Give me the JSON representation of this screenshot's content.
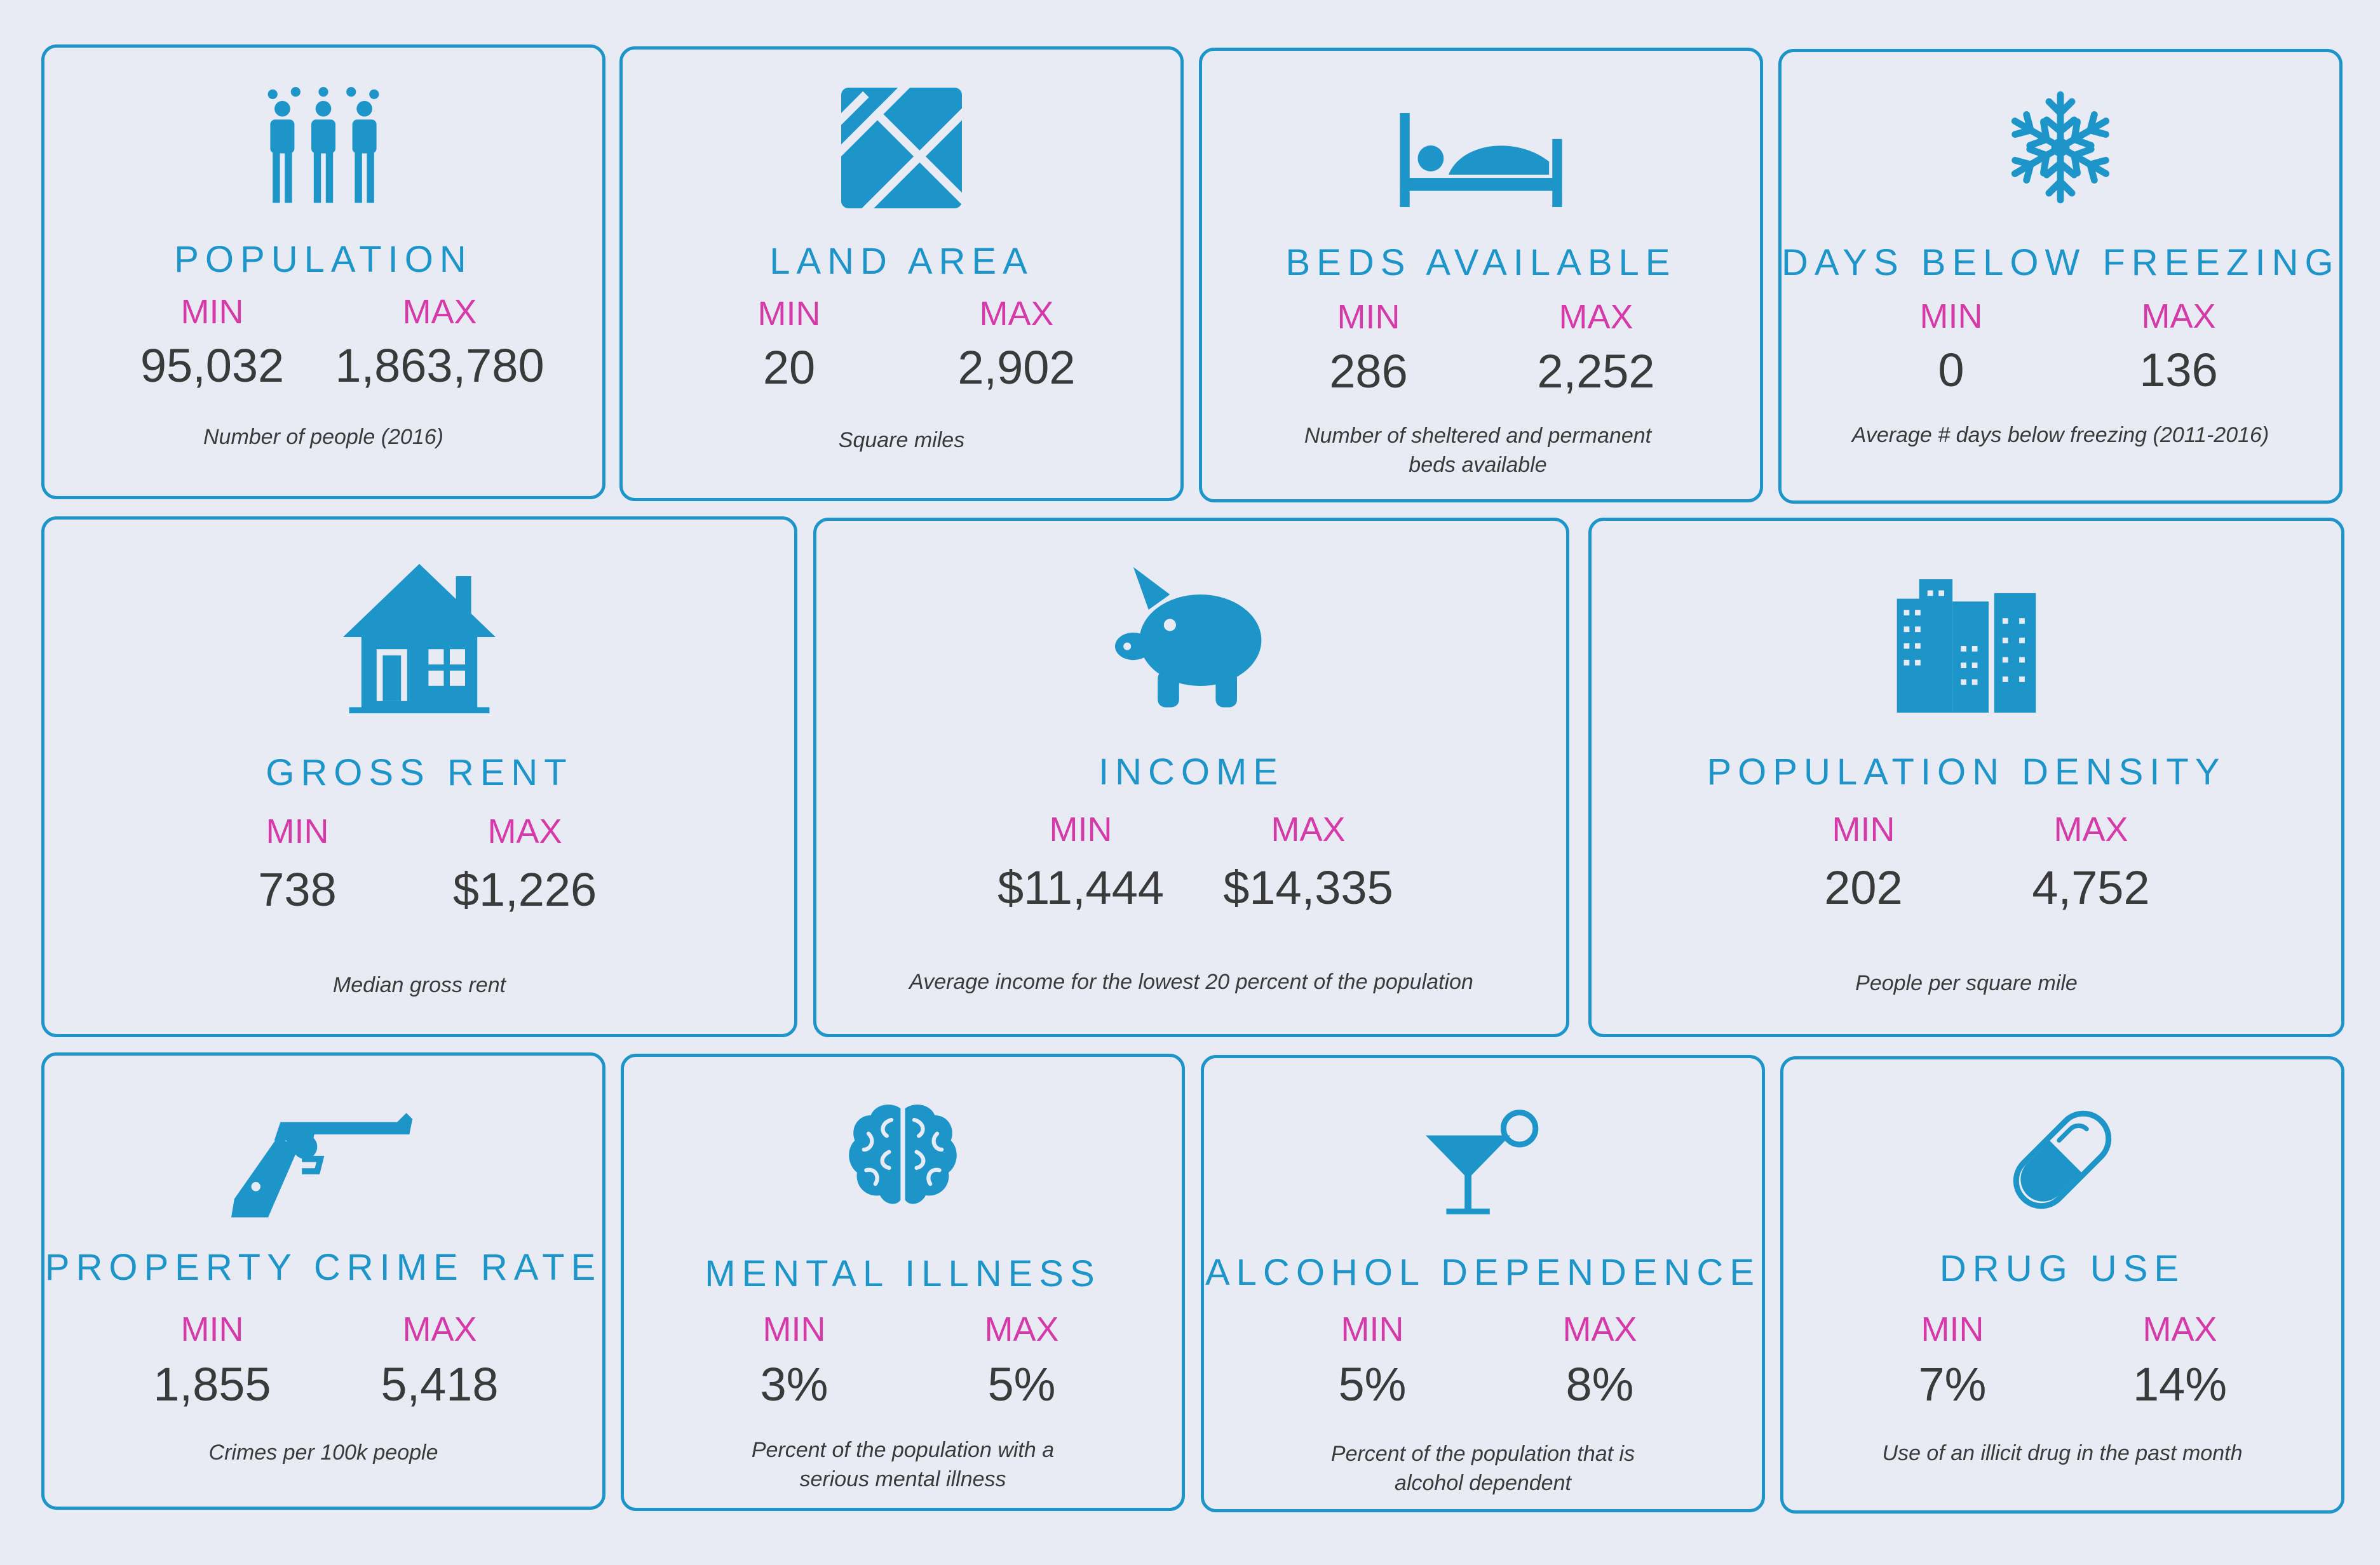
{
  "labels": {
    "min": "MIN",
    "max": "MAX"
  },
  "colors": {
    "accent": "#1d95c9",
    "label": "#d43aa8",
    "background": "#e8ebf4"
  },
  "cards": [
    {
      "icon": "people-icon",
      "title": "POPULATION",
      "min": "95,032",
      "max": "1,863,780",
      "note": "Number of people (2016)"
    },
    {
      "icon": "map-icon",
      "title": "LAND AREA",
      "min": "20",
      "max": "2,902",
      "note": "Square miles"
    },
    {
      "icon": "bed-icon",
      "title": "BEDS AVAILABLE",
      "min": "286",
      "max": "2,252",
      "note": "Number of sheltered and permanent beds available"
    },
    {
      "icon": "snowflake-icon",
      "title": "DAYS BELOW FREEZING",
      "min": "0",
      "max": "136",
      "note": "Average # days below freezing (2011-2016)"
    },
    {
      "icon": "house-icon",
      "title": "GROSS RENT",
      "min": "738",
      "max": "$1,226",
      "note": "Median gross rent"
    },
    {
      "icon": "piggy-bank-icon",
      "title": "INCOME",
      "min": "$11,444",
      "max": "$14,335",
      "note": "Average income for the lowest 20 percent of the population"
    },
    {
      "icon": "buildings-icon",
      "title": "POPULATION DENSITY",
      "min": "202",
      "max": "4,752",
      "note": "People per square mile"
    },
    {
      "icon": "gun-icon",
      "title": "PROPERTY CRIME RATE",
      "min": "1,855",
      "max": "5,418",
      "note": "Crimes per 100k people"
    },
    {
      "icon": "brain-icon",
      "title": "MENTAL ILLNESS",
      "min": "3%",
      "max": "5%",
      "note": "Percent of the population with a serious mental illness"
    },
    {
      "icon": "cocktail-icon",
      "title": "ALCOHOL DEPENDENCE",
      "min": "5%",
      "max": "8%",
      "note": "Percent of the population that is alcohol dependent"
    },
    {
      "icon": "pill-icon",
      "title": "DRUG USE",
      "min": "7%",
      "max": "14%",
      "note": "Use of an illicit drug in the past month"
    }
  ]
}
